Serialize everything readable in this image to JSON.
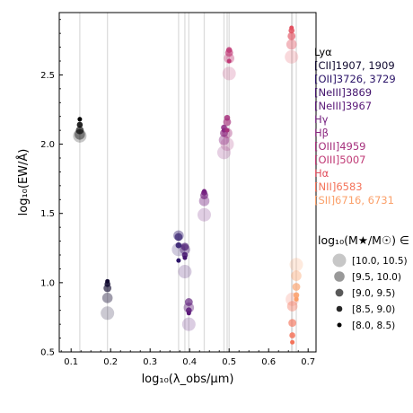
{
  "chart_data": {
    "type": "scatter",
    "xlabel": "log₁₀(λ_obs/µm)",
    "ylabel": "log₁₀(EW/Å)",
    "xlim": [
      0.07,
      0.72
    ],
    "ylim": [
      0.5,
      2.95
    ],
    "xticks": [
      "0.1",
      "0.2",
      "0.3",
      "0.4",
      "0.5",
      "0.6",
      "0.7"
    ],
    "yticks": [
      "0.5",
      "1.0",
      "1.5",
      "2.0",
      "2.5"
    ],
    "grid": false,
    "lines": [
      {
        "name": "Lyα",
        "color": "#000000",
        "x": 0.122
      },
      {
        "name": "[CII]1907, 1909",
        "color": "#110a30",
        "x": 0.192
      },
      {
        "name": "[OII]3726, 3729",
        "color": "#2b1468",
        "x": 0.372
      },
      {
        "name": "[NeIII]3869",
        "color": "#43136d",
        "x": 0.388
      },
      {
        "name": "[NeIII]3967",
        "color": "#5c1a79",
        "x": 0.398
      },
      {
        "name": "Hγ",
        "color": "#74207f",
        "x": 0.437
      },
      {
        "name": "Hβ",
        "color": "#8c2981",
        "x": 0.487
      },
      {
        "name": "[OIII]4959",
        "color": "#a6317d",
        "x": 0.495
      },
      {
        "name": "[OIII]5007",
        "color": "#c03a76",
        "x": 0.5
      },
      {
        "name": "Hα",
        "color": "#e2505f",
        "x": 0.658
      },
      {
        "name": "[NII]6583",
        "color": "#f4735a",
        "x": 0.66
      },
      {
        "name": "[SII]6716, 6731",
        "color": "#fba06a",
        "x": 0.67
      }
    ],
    "series": [
      {
        "mass_bin": "[10.0, 10.5)",
        "points": [
          {
            "line": "Lyα",
            "x": 0.122,
            "y": 2.06
          },
          {
            "line": "[CII]1907, 1909",
            "x": 0.192,
            "y": 0.78
          },
          {
            "line": "[OII]3726, 3729",
            "x": 0.372,
            "y": 1.24
          },
          {
            "line": "[NeIII]3869",
            "x": 0.388,
            "y": 1.08
          },
          {
            "line": "[NeIII]3967",
            "x": 0.398,
            "y": 0.7
          },
          {
            "line": "Hγ",
            "x": 0.437,
            "y": 1.49
          },
          {
            "line": "Hβ",
            "x": 0.487,
            "y": 1.94
          },
          {
            "line": "[OIII]4959",
            "x": 0.495,
            "y": 2.0
          },
          {
            "line": "[OIII]5007",
            "x": 0.5,
            "y": 2.51
          },
          {
            "line": "Hα",
            "x": 0.658,
            "y": 2.63
          },
          {
            "line": "[NII]6583",
            "x": 0.66,
            "y": 0.88
          },
          {
            "line": "[SII]6716, 6731",
            "x": 0.67,
            "y": 1.13
          }
        ]
      },
      {
        "mass_bin": "[9.5, 10.0)",
        "points": [
          {
            "line": "Lyα",
            "x": 0.122,
            "y": 2.07
          },
          {
            "line": "[CII]1907, 1909",
            "x": 0.192,
            "y": 0.89
          },
          {
            "line": "[OII]3726, 3729",
            "x": 0.372,
            "y": 1.34
          },
          {
            "line": "[NeIII]3869",
            "x": 0.388,
            "y": 1.24
          },
          {
            "line": "[NeIII]3967",
            "x": 0.398,
            "y": 0.82
          },
          {
            "line": "Hγ",
            "x": 0.437,
            "y": 1.59
          },
          {
            "line": "Hβ",
            "x": 0.487,
            "y": 2.03
          },
          {
            "line": "[OIII]4959",
            "x": 0.495,
            "y": 2.08
          },
          {
            "line": "[OIII]5007",
            "x": 0.5,
            "y": 2.62
          },
          {
            "line": "Hα",
            "x": 0.658,
            "y": 2.72
          },
          {
            "line": "[NII]6583",
            "x": 0.66,
            "y": 0.83
          },
          {
            "line": "[SII]6716, 6731",
            "x": 0.67,
            "y": 1.05
          }
        ]
      },
      {
        "mass_bin": "[9.0, 9.5)",
        "points": [
          {
            "line": "Lyα",
            "x": 0.122,
            "y": 2.1
          },
          {
            "line": "[CII]1907, 1909",
            "x": 0.192,
            "y": 0.96
          },
          {
            "line": "[OII]3726, 3729",
            "x": 0.372,
            "y": 1.33
          },
          {
            "line": "[NeIII]3869",
            "x": 0.388,
            "y": 1.26
          },
          {
            "line": "[NeIII]3967",
            "x": 0.398,
            "y": 0.86
          },
          {
            "line": "Hγ",
            "x": 0.437,
            "y": 1.63
          },
          {
            "line": "Hβ",
            "x": 0.487,
            "y": 2.08
          },
          {
            "line": "[OIII]4959",
            "x": 0.495,
            "y": 2.16
          },
          {
            "line": "[OIII]5007",
            "x": 0.5,
            "y": 2.66
          },
          {
            "line": "Hα",
            "x": 0.658,
            "y": 2.78
          },
          {
            "line": "[NII]6583",
            "x": 0.66,
            "y": 0.71
          },
          {
            "line": "[SII]6716, 6731",
            "x": 0.67,
            "y": 0.97
          }
        ]
      },
      {
        "mass_bin": "[8.5, 9.0)",
        "points": [
          {
            "line": "Lyα",
            "x": 0.122,
            "y": 2.14
          },
          {
            "line": "[CII]1907, 1909",
            "x": 0.192,
            "y": 0.99
          },
          {
            "line": "[OII]3726, 3729",
            "x": 0.372,
            "y": 1.27
          },
          {
            "line": "[NeIII]3869",
            "x": 0.388,
            "y": 1.2
          },
          {
            "line": "[NeIII]3967",
            "x": 0.398,
            "y": 0.8
          },
          {
            "line": "Hγ",
            "x": 0.437,
            "y": 1.65
          },
          {
            "line": "Hβ",
            "x": 0.487,
            "y": 2.12
          },
          {
            "line": "[OIII]4959",
            "x": 0.495,
            "y": 2.19
          },
          {
            "line": "[OIII]5007",
            "x": 0.5,
            "y": 2.68
          },
          {
            "line": "Hα",
            "x": 0.658,
            "y": 2.82
          },
          {
            "line": "[NII]6583",
            "x": 0.66,
            "y": 0.62
          },
          {
            "line": "[SII]6716, 6731",
            "x": 0.67,
            "y": 0.91
          }
        ]
      },
      {
        "mass_bin": "[8.0, 8.5)",
        "points": [
          {
            "line": "Lyα",
            "x": 0.122,
            "y": 2.18
          },
          {
            "line": "[CII]1907, 1909",
            "x": 0.192,
            "y": 1.01
          },
          {
            "line": "[OII]3726, 3729",
            "x": 0.372,
            "y": 1.16
          },
          {
            "line": "[NeIII]3869",
            "x": 0.388,
            "y": 1.18
          },
          {
            "line": "[NeIII]3967",
            "x": 0.398,
            "y": 0.78
          },
          {
            "line": "Hγ",
            "x": 0.437,
            "y": 1.66
          },
          {
            "line": "Hβ",
            "x": 0.487,
            "y": 2.1
          },
          {
            "line": "[OIII]4959",
            "x": 0.495,
            "y": 2.1
          },
          {
            "line": "[OIII]5007",
            "x": 0.5,
            "y": 2.6
          },
          {
            "line": "Hα",
            "x": 0.658,
            "y": 2.84
          },
          {
            "line": "[NII]6583",
            "x": 0.66,
            "y": 0.57
          },
          {
            "line": "[SII]6716, 6731",
            "x": 0.67,
            "y": 0.88
          }
        ]
      }
    ],
    "size_legend": {
      "title": "log₁₀(M★/M☉) ∈",
      "placement": "right",
      "entries": [
        "[10.0, 10.5)",
        "[9.5, 10.0)",
        "[9.0, 9.5)",
        "[8.5, 9.0)",
        "[8.0, 8.5)"
      ]
    },
    "line_legend_placement": "top-right"
  }
}
